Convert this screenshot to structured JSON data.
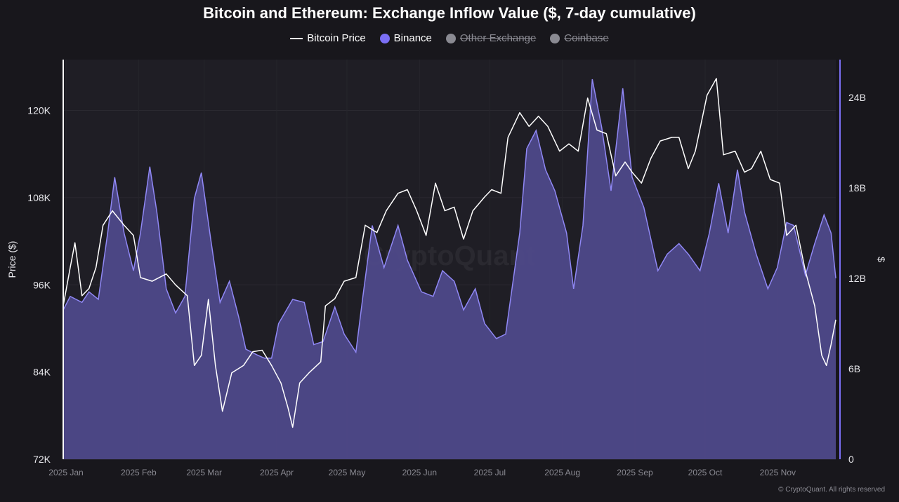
{
  "chart_data": {
    "type": "area",
    "title": "Bitcoin and Ethereum: Exchange Inflow Value ($, 7-day cumulative)",
    "legend": [
      {
        "name": "Bitcoin Price",
        "color": "#ffffff",
        "active": true
      },
      {
        "name": "Binance",
        "color": "#7b6ff5",
        "active": true
      },
      {
        "name": "Other Exchange",
        "color": "#8a8a92",
        "active": false
      },
      {
        "name": "Coinbase",
        "color": "#8a8a92",
        "active": false
      }
    ],
    "legend_placement": "top-center",
    "ylabel_left": "Price ($)",
    "ylabel_right": "$",
    "ylim_left": [
      72000,
      127000
    ],
    "ylim_right": [
      0,
      26.5
    ],
    "xlim": [
      "2025-01-01",
      "2025-11-27"
    ],
    "left_ticks": [
      {
        "v": 72000,
        "label": "72K"
      },
      {
        "v": 84000,
        "label": "84K"
      },
      {
        "v": 96000,
        "label": "96K"
      },
      {
        "v": 108000,
        "label": "108K"
      },
      {
        "v": 120000,
        "label": "120K"
      }
    ],
    "right_ticks": [
      {
        "v": 0,
        "label": "0"
      },
      {
        "v": 6,
        "label": "6B"
      },
      {
        "v": 12,
        "label": "12B"
      },
      {
        "v": 18,
        "label": "18B"
      },
      {
        "v": 24,
        "label": "24B"
      }
    ],
    "x_ticks": [
      {
        "d": "2025-01-01",
        "label": "2025 Jan"
      },
      {
        "d": "2025-02-01",
        "label": "2025 Feb"
      },
      {
        "d": "2025-03-01",
        "label": "2025 Mar"
      },
      {
        "d": "2025-04-01",
        "label": "2025 Apr"
      },
      {
        "d": "2025-05-01",
        "label": "2025 May"
      },
      {
        "d": "2025-06-01",
        "label": "2025 Jun"
      },
      {
        "d": "2025-07-01",
        "label": "2025 Jul"
      },
      {
        "d": "2025-08-01",
        "label": "2025 Aug"
      },
      {
        "d": "2025-09-01",
        "label": "2025 Sep"
      },
      {
        "d": "2025-10-01",
        "label": "2025 Oct"
      },
      {
        "d": "2025-11-01",
        "label": "2025 Nov"
      }
    ],
    "grid": true,
    "series": [
      {
        "name": "Bitcoin Price",
        "axis": "left",
        "type": "line",
        "color": "#ffffff",
        "points": [
          [
            "2025-01-01",
            93100
          ],
          [
            "2025-01-04",
            98400
          ],
          [
            "2025-01-06",
            101800
          ],
          [
            "2025-01-09",
            94500
          ],
          [
            "2025-01-12",
            95500
          ],
          [
            "2025-01-15",
            98400
          ],
          [
            "2025-01-18",
            104200
          ],
          [
            "2025-01-22",
            106200
          ],
          [
            "2025-01-27",
            104200
          ],
          [
            "2025-01-31",
            102800
          ],
          [
            "2025-02-03",
            97000
          ],
          [
            "2025-02-08",
            96500
          ],
          [
            "2025-02-14",
            97500
          ],
          [
            "2025-02-18",
            96000
          ],
          [
            "2025-02-23",
            94500
          ],
          [
            "2025-02-26",
            84900
          ],
          [
            "2025-03-01",
            86300
          ],
          [
            "2025-03-04",
            94000
          ],
          [
            "2025-03-07",
            84900
          ],
          [
            "2025-03-10",
            78600
          ],
          [
            "2025-03-14",
            83900
          ],
          [
            "2025-03-19",
            84900
          ],
          [
            "2025-03-23",
            86800
          ],
          [
            "2025-03-27",
            87000
          ],
          [
            "2025-03-31",
            84900
          ],
          [
            "2025-04-04",
            82500
          ],
          [
            "2025-04-07",
            79100
          ],
          [
            "2025-04-09",
            76400
          ],
          [
            "2025-04-12",
            82500
          ],
          [
            "2025-04-16",
            83900
          ],
          [
            "2025-04-21",
            85400
          ],
          [
            "2025-04-23",
            93100
          ],
          [
            "2025-04-27",
            94100
          ],
          [
            "2025-05-01",
            96500
          ],
          [
            "2025-05-06",
            97000
          ],
          [
            "2025-05-10",
            104200
          ],
          [
            "2025-05-15",
            103200
          ],
          [
            "2025-05-19",
            106200
          ],
          [
            "2025-05-24",
            108600
          ],
          [
            "2025-05-28",
            109100
          ],
          [
            "2025-06-01",
            106200
          ],
          [
            "2025-06-05",
            102800
          ],
          [
            "2025-06-09",
            110000
          ],
          [
            "2025-06-13",
            106200
          ],
          [
            "2025-06-17",
            106700
          ],
          [
            "2025-06-21",
            102300
          ],
          [
            "2025-06-25",
            106200
          ],
          [
            "2025-06-30",
            108100
          ],
          [
            "2025-07-03",
            109100
          ],
          [
            "2025-07-07",
            108600
          ],
          [
            "2025-07-10",
            116300
          ],
          [
            "2025-07-15",
            119700
          ],
          [
            "2025-07-19",
            117800
          ],
          [
            "2025-07-23",
            119200
          ],
          [
            "2025-07-27",
            117800
          ],
          [
            "2025-08-01",
            114400
          ],
          [
            "2025-08-05",
            115400
          ],
          [
            "2025-08-09",
            114400
          ],
          [
            "2025-08-13",
            121700
          ],
          [
            "2025-08-17",
            117300
          ],
          [
            "2025-08-21",
            116800
          ],
          [
            "2025-08-25",
            111000
          ],
          [
            "2025-08-29",
            112900
          ],
          [
            "2025-09-01",
            111500
          ],
          [
            "2025-09-05",
            110000
          ],
          [
            "2025-09-09",
            113400
          ],
          [
            "2025-09-13",
            115800
          ],
          [
            "2025-09-18",
            116300
          ],
          [
            "2025-09-21",
            116300
          ],
          [
            "2025-09-25",
            112000
          ],
          [
            "2025-09-28",
            114400
          ],
          [
            "2025-10-03",
            122100
          ],
          [
            "2025-10-07",
            124400
          ],
          [
            "2025-10-10",
            113900
          ],
          [
            "2025-10-15",
            114400
          ],
          [
            "2025-10-19",
            111500
          ],
          [
            "2025-10-22",
            112000
          ],
          [
            "2025-10-26",
            114400
          ],
          [
            "2025-10-30",
            110500
          ],
          [
            "2025-11-03",
            110000
          ],
          [
            "2025-11-06",
            102800
          ],
          [
            "2025-11-10",
            104200
          ],
          [
            "2025-11-14",
            97900
          ],
          [
            "2025-11-18",
            93100
          ],
          [
            "2025-11-21",
            86300
          ],
          [
            "2025-11-23",
            84900
          ],
          [
            "2025-11-25",
            87800
          ],
          [
            "2025-11-27",
            91200
          ]
        ]
      },
      {
        "name": "Binance",
        "axis": "right",
        "type": "area",
        "unit": "B",
        "color": "#7b6ff5",
        "points": [
          [
            "2025-01-01",
            9.9
          ],
          [
            "2025-01-04",
            10.8
          ],
          [
            "2025-01-09",
            10.4
          ],
          [
            "2025-01-12",
            11.1
          ],
          [
            "2025-01-16",
            10.6
          ],
          [
            "2025-01-20",
            15.0
          ],
          [
            "2025-01-23",
            18.7
          ],
          [
            "2025-01-27",
            15.0
          ],
          [
            "2025-01-31",
            12.5
          ],
          [
            "2025-02-03",
            15.0
          ],
          [
            "2025-02-07",
            19.4
          ],
          [
            "2025-02-10",
            16.4
          ],
          [
            "2025-02-14",
            11.3
          ],
          [
            "2025-02-18",
            9.7
          ],
          [
            "2025-02-22",
            10.8
          ],
          [
            "2025-02-26",
            17.3
          ],
          [
            "2025-03-01",
            19.0
          ],
          [
            "2025-03-05",
            14.6
          ],
          [
            "2025-03-09",
            10.4
          ],
          [
            "2025-03-13",
            11.8
          ],
          [
            "2025-03-17",
            9.4
          ],
          [
            "2025-03-20",
            7.3
          ],
          [
            "2025-03-25",
            6.9
          ],
          [
            "2025-03-28",
            6.7
          ],
          [
            "2025-03-31",
            6.7
          ],
          [
            "2025-04-03",
            9.0
          ],
          [
            "2025-04-09",
            10.6
          ],
          [
            "2025-04-14",
            10.4
          ],
          [
            "2025-04-18",
            7.6
          ],
          [
            "2025-04-22",
            7.8
          ],
          [
            "2025-04-27",
            10.1
          ],
          [
            "2025-05-01",
            8.3
          ],
          [
            "2025-05-06",
            7.1
          ],
          [
            "2025-05-09",
            10.8
          ],
          [
            "2025-05-13",
            15.5
          ],
          [
            "2025-05-18",
            12.7
          ],
          [
            "2025-05-24",
            15.5
          ],
          [
            "2025-05-28",
            13.2
          ],
          [
            "2025-06-03",
            11.1
          ],
          [
            "2025-06-08",
            10.8
          ],
          [
            "2025-06-12",
            12.5
          ],
          [
            "2025-06-17",
            11.8
          ],
          [
            "2025-06-21",
            9.9
          ],
          [
            "2025-06-26",
            11.3
          ],
          [
            "2025-06-30",
            9.0
          ],
          [
            "2025-07-05",
            8.0
          ],
          [
            "2025-07-09",
            8.3
          ],
          [
            "2025-07-15",
            15.0
          ],
          [
            "2025-07-18",
            20.6
          ],
          [
            "2025-07-22",
            21.8
          ],
          [
            "2025-07-26",
            19.2
          ],
          [
            "2025-07-30",
            17.8
          ],
          [
            "2025-08-04",
            15.0
          ],
          [
            "2025-08-07",
            11.3
          ],
          [
            "2025-08-11",
            15.5
          ],
          [
            "2025-08-15",
            25.2
          ],
          [
            "2025-08-19",
            22.0
          ],
          [
            "2025-08-23",
            17.8
          ],
          [
            "2025-08-28",
            24.6
          ],
          [
            "2025-09-01",
            18.7
          ],
          [
            "2025-09-06",
            16.7
          ],
          [
            "2025-09-12",
            12.5
          ],
          [
            "2025-09-16",
            13.6
          ],
          [
            "2025-09-21",
            14.3
          ],
          [
            "2025-09-25",
            13.6
          ],
          [
            "2025-09-30",
            12.5
          ],
          [
            "2025-10-04",
            15.0
          ],
          [
            "2025-10-08",
            18.3
          ],
          [
            "2025-10-12",
            15.0
          ],
          [
            "2025-10-16",
            19.2
          ],
          [
            "2025-10-19",
            16.4
          ],
          [
            "2025-10-24",
            13.6
          ],
          [
            "2025-10-29",
            11.3
          ],
          [
            "2025-11-02",
            12.7
          ],
          [
            "2025-11-06",
            15.7
          ],
          [
            "2025-11-09",
            15.5
          ],
          [
            "2025-11-14",
            12.2
          ],
          [
            "2025-11-18",
            14.3
          ],
          [
            "2025-11-22",
            16.2
          ],
          [
            "2025-11-25",
            15.0
          ],
          [
            "2025-11-27",
            12.0
          ]
        ]
      }
    ],
    "watermark": "CryptoQuant"
  },
  "footer": "© CryptoQuant. All rights reserved"
}
